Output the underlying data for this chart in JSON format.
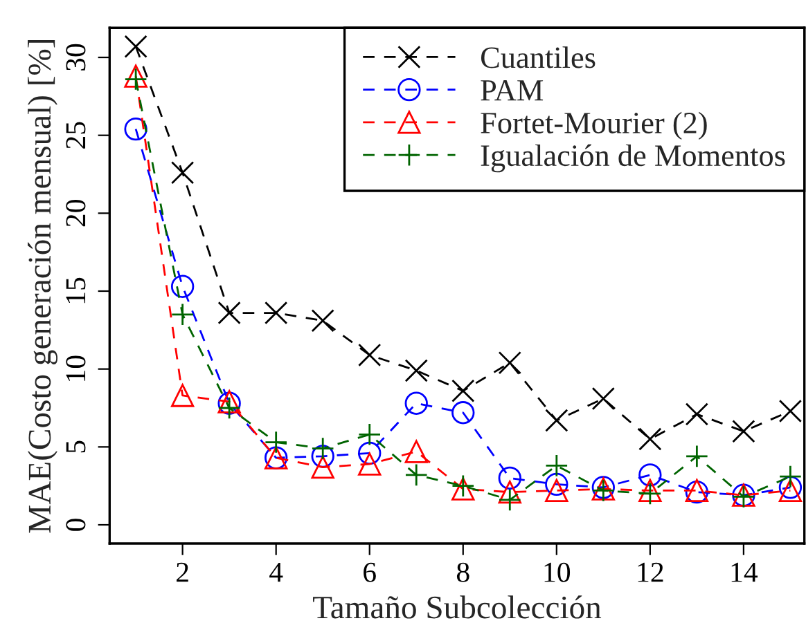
{
  "chart_data": {
    "type": "line",
    "xlabel": "Tamaño Subcolección",
    "ylabel": "MAE(Costo generación mensual) [%]",
    "x": [
      1,
      2,
      3,
      4,
      5,
      6,
      7,
      8,
      9,
      10,
      11,
      12,
      13,
      14,
      15
    ],
    "series": [
      {
        "name": "Cuantiles",
        "color": "#000000",
        "marker": "cross",
        "values": [
          30.7,
          22.6,
          13.6,
          13.6,
          13.1,
          10.9,
          9.9,
          8.6,
          10.4,
          6.7,
          8.1,
          5.5,
          7.1,
          6.0,
          7.3
        ]
      },
      {
        "name": "PAM",
        "color": "#0000ff",
        "marker": "circle",
        "values": [
          25.4,
          15.3,
          7.8,
          4.3,
          4.4,
          4.6,
          7.8,
          7.2,
          3.0,
          2.6,
          2.4,
          3.2,
          2.1,
          1.9,
          2.4
        ]
      },
      {
        "name": "Fortet-Mourier (2)",
        "color": "#ff0000",
        "marker": "triangle",
        "values": [
          28.8,
          8.3,
          7.9,
          4.3,
          3.7,
          3.9,
          4.7,
          2.3,
          2.1,
          2.2,
          2.3,
          2.2,
          2.2,
          1.9,
          2.2
        ]
      },
      {
        "name": "Igualación de Momentos",
        "color": "#006400",
        "marker": "plus",
        "values": [
          28.6,
          13.5,
          7.5,
          5.3,
          4.9,
          5.8,
          3.2,
          2.5,
          1.6,
          3.8,
          2.2,
          2.0,
          4.4,
          1.8,
          3.1
        ]
      }
    ],
    "line_style": "dashed",
    "xlim": [
      0.44,
      15.3
    ],
    "ylim": [
      -1.2,
      31.9
    ],
    "xticks": [
      2,
      4,
      6,
      8,
      10,
      12,
      14
    ],
    "yticks": [
      0,
      5,
      10,
      15,
      20,
      25,
      30
    ],
    "grid": false,
    "legend": "top right"
  }
}
